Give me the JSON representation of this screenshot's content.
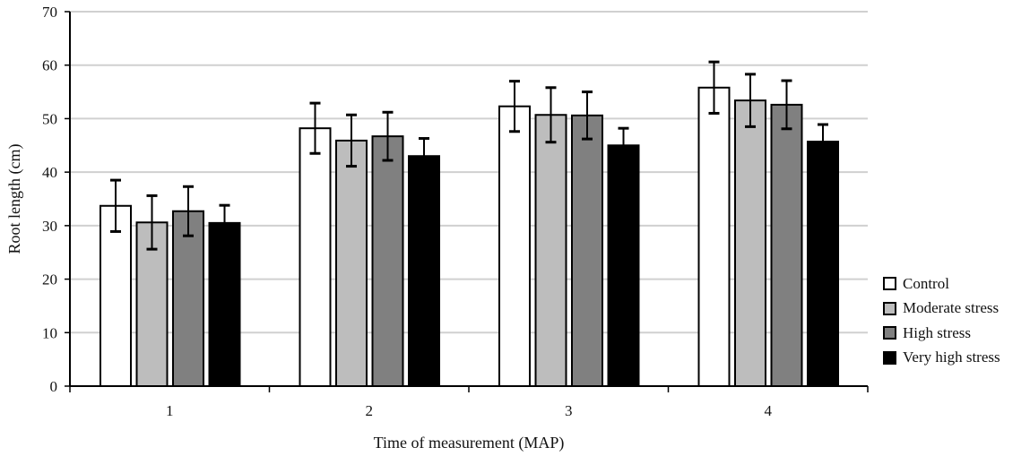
{
  "chart_data": {
    "type": "bar",
    "title": "",
    "xlabel": "Time of measurement (MAP)",
    "ylabel": "Root length  (cm)",
    "ylim": [
      0,
      70
    ],
    "yticks": [
      0,
      10,
      20,
      30,
      40,
      50,
      60,
      70
    ],
    "categories": [
      "1",
      "2",
      "3",
      "4"
    ],
    "grid": true,
    "legend_position": "right",
    "series": [
      {
        "name": "Control",
        "color": "#ffffff",
        "values": [
          33.7,
          48.2,
          52.3,
          55.8
        ],
        "errors": [
          4.8,
          4.7,
          4.7,
          4.8
        ]
      },
      {
        "name": "Moderate stress",
        "color": "#bdbdbd",
        "values": [
          30.6,
          45.9,
          50.7,
          53.4
        ],
        "errors": [
          5.0,
          4.8,
          5.1,
          4.9
        ]
      },
      {
        "name": "High stress",
        "color": "#808080",
        "values": [
          32.7,
          46.7,
          50.6,
          52.6
        ],
        "errors": [
          4.6,
          4.5,
          4.4,
          4.5
        ]
      },
      {
        "name": "Very high stress",
        "color": "#000000",
        "values": [
          30.5,
          43.0,
          45.0,
          45.7
        ],
        "errors": [
          3.3,
          3.3,
          3.2,
          3.2
        ]
      }
    ]
  }
}
